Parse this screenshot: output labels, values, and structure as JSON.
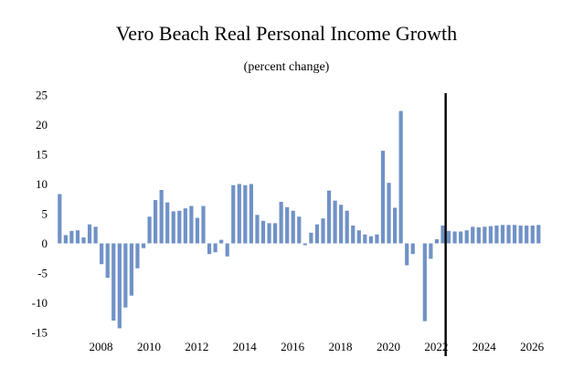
{
  "chart_data": {
    "type": "bar",
    "title": "Vero Beach Real Personal Income Growth",
    "subtitle": "(percent change)",
    "xlabel": "",
    "ylabel": "",
    "ylim": [
      -15,
      25
    ],
    "yticks": [
      25,
      20,
      15,
      10,
      5,
      0,
      -5,
      -10,
      -15
    ],
    "xticks": [
      "2008",
      "2010",
      "2012",
      "2014",
      "2016",
      "2018",
      "2020",
      "2022",
      "2024",
      "2026"
    ],
    "x_start": "2006Q2",
    "frequency": "quarterly",
    "forecast_start": "2022Q3",
    "bar_color": "#7092c6",
    "divider_color": "#000000",
    "values": [
      8.3,
      1.4,
      2.1,
      2.2,
      1.0,
      3.2,
      2.8,
      -3.5,
      -5.8,
      -13.0,
      -14.3,
      -10.8,
      -8.8,
      -4.2,
      -0.8,
      4.5,
      7.3,
      9.0,
      6.9,
      5.4,
      5.5,
      5.9,
      6.3,
      4.3,
      6.3,
      -1.8,
      -1.5,
      0.6,
      -2.2,
      9.8,
      10.0,
      9.8,
      10.0,
      4.8,
      3.8,
      3.4,
      3.4,
      7.0,
      6.1,
      5.5,
      4.5,
      -0.3,
      1.8,
      3.2,
      4.2,
      8.9,
      7.2,
      6.5,
      5.5,
      3.0,
      2.2,
      1.5,
      1.2,
      1.5,
      15.6,
      10.2,
      6.0,
      22.3,
      -3.7,
      -1.8,
      0.0,
      -13.1,
      -2.6,
      0.7,
      3.0,
      2.1,
      2.0,
      2.0,
      2.2,
      2.8,
      2.7,
      2.8,
      2.9,
      3.0,
      3.1,
      3.1,
      3.1,
      3.0,
      3.0,
      3.0,
      3.1
    ]
  }
}
